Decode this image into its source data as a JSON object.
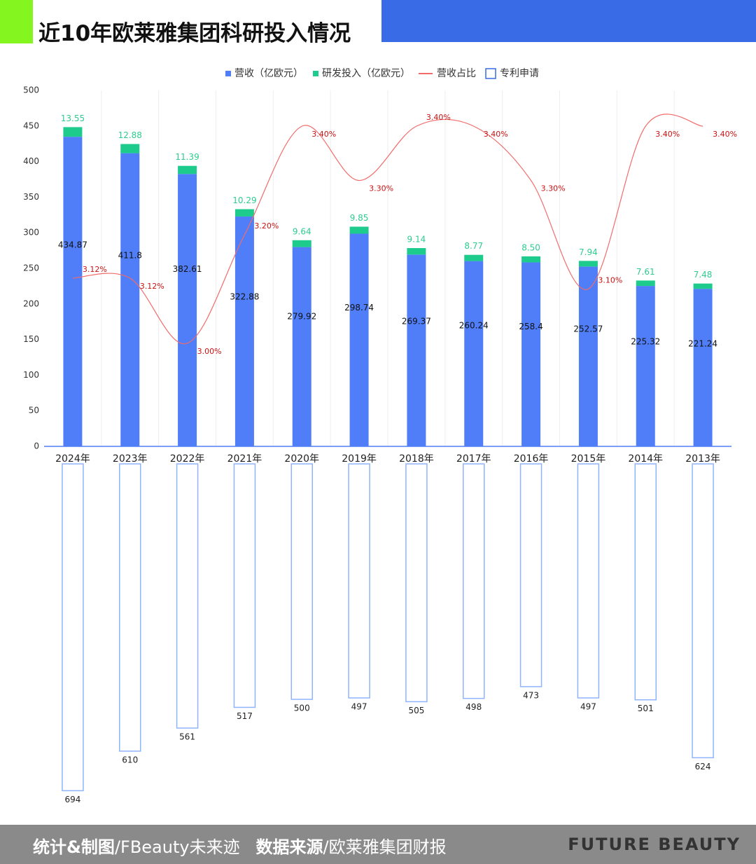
{
  "chart_data": {
    "type": "bar",
    "title": "近10年欧莱雅集团科研投入情况",
    "categories": [
      "2024年",
      "2023年",
      "2022年",
      "2021年",
      "2020年",
      "2019年",
      "2018年",
      "2017年",
      "2016年",
      "2015年",
      "2014年",
      "2013年"
    ],
    "series": [
      {
        "name": "营收（亿欧元）",
        "type": "bar",
        "stack": "main",
        "color": "#4f7ef8",
        "values": [
          434.87,
          411.8,
          382.61,
          322.88,
          279.92,
          298.74,
          269.37,
          260.24,
          258.4,
          252.57,
          225.32,
          221.24
        ]
      },
      {
        "name": "研发投入（亿欧元）",
        "type": "bar",
        "stack": "main",
        "color": "#1dcc8c",
        "values": [
          13.55,
          12.88,
          11.39,
          10.29,
          9.64,
          9.85,
          9.14,
          8.77,
          8.5,
          7.94,
          7.61,
          7.48
        ],
        "value_labels": [
          "13.55",
          "12.88",
          "11.39",
          "10.29",
          "9.64",
          "9.85",
          "9.14",
          "8.77",
          "8.50",
          "7.94",
          "7.61",
          "7.48"
        ]
      },
      {
        "name": "营收占比",
        "type": "line",
        "axis": "y2",
        "color": "#f26b6b",
        "values": [
          3.12,
          3.12,
          3.0,
          3.2,
          3.4,
          3.3,
          3.4,
          3.4,
          3.3,
          3.1,
          3.4,
          3.4
        ],
        "value_labels": [
          "3.12%",
          "3.12%",
          "3.00%",
          "3.20%",
          "3.40%",
          "3.30%",
          "3.40%",
          "3.40%",
          "3.30%",
          "3.10%",
          "3.40%",
          "3.40%"
        ]
      },
      {
        "name": "专利申请",
        "type": "hollow-bar",
        "axis": "y3",
        "color": "#8fb4ff",
        "values": [
          694,
          610,
          561,
          517,
          500,
          497,
          505,
          498,
          473,
          497,
          501,
          624
        ]
      }
    ],
    "ylim": [
      0,
      500
    ],
    "yticks": [
      0,
      50,
      100,
      150,
      200,
      250,
      300,
      350,
      400,
      450,
      500
    ],
    "y2lim": [
      2.81,
      3.466
    ],
    "y3lim": [
      0,
      744
    ],
    "legend": "top",
    "grid": false
  },
  "footer": {
    "credit_label": "统计&制图",
    "credit": "/FBeauty未来迹",
    "source_label": "数据来源",
    "source": "/欧莱雅集团财报",
    "brand": "FUTURE BEAUTY"
  }
}
